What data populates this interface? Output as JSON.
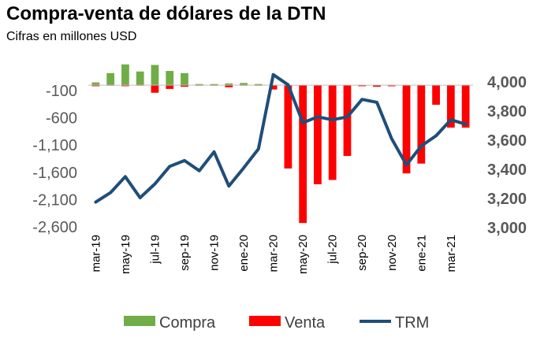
{
  "title": "Compra-venta de dólares de la DTN",
  "subtitle": "Cifras en millones USD",
  "colors": {
    "compra": "#70ad47",
    "venta": "#ff0000",
    "trm": "#1f4e79"
  },
  "chart_data": {
    "type": "bar+line",
    "categories": [
      "mar-19",
      "abr-19",
      "may-19",
      "jun-19",
      "jul-19",
      "ago-19",
      "sep-19",
      "oct-19",
      "nov-19",
      "dic-19",
      "ene-20",
      "feb-20",
      "mar-20",
      "abr-20",
      "may-20",
      "jun-20",
      "jul-20",
      "ago-20",
      "sep-20",
      "oct-20",
      "nov-20",
      "dic-20",
      "ene-21",
      "feb-21",
      "mar-21",
      "abr-21"
    ],
    "x_tick_labels": [
      "mar-19",
      "may-19",
      "jul-19",
      "sep-19",
      "nov-19",
      "ene-20",
      "mar-20",
      "may-20",
      "jul-20",
      "sep-20",
      "nov-20",
      "ene-21",
      "mar-21"
    ],
    "y_left": {
      "ticks": [
        "-100",
        "-600",
        "-1,100",
        "-1,600",
        "-2,100",
        "-2,600"
      ],
      "range": [
        -2900,
        400
      ]
    },
    "y_right": {
      "ticks": [
        "4,000",
        "3,800",
        "3,600",
        "3,400",
        "3,200",
        "3,000"
      ],
      "range": [
        2950,
        4050
      ]
    },
    "series": [
      {
        "name": "Compra",
        "type": "bar",
        "axis": "left",
        "values": [
          50,
          220,
          380,
          250,
          370,
          260,
          220,
          20,
          20,
          30,
          40,
          20,
          0,
          0,
          0,
          0,
          0,
          0,
          0,
          0,
          0,
          0,
          0,
          0,
          0,
          0
        ]
      },
      {
        "name": "Venta",
        "type": "bar",
        "axis": "left",
        "values": [
          -20,
          -10,
          -20,
          -10,
          -140,
          -70,
          -30,
          -10,
          -10,
          -40,
          -10,
          -10,
          -80,
          -1530,
          -2530,
          -1820,
          -1740,
          -1300,
          -20,
          -30,
          -20,
          -1620,
          -1440,
          -360,
          -780,
          -780
        ]
      },
      {
        "name": "TRM",
        "type": "line",
        "axis": "right",
        "values": [
          3175,
          3240,
          3350,
          3205,
          3300,
          3420,
          3460,
          3390,
          3520,
          3285,
          3410,
          3540,
          4050,
          3980,
          3720,
          3760,
          3740,
          3760,
          3880,
          3860,
          3610,
          3430,
          3560,
          3630,
          3740,
          3710
        ]
      }
    ],
    "legend": {
      "placement": "bottom",
      "items": [
        "Compra",
        "Venta",
        "TRM"
      ]
    }
  }
}
